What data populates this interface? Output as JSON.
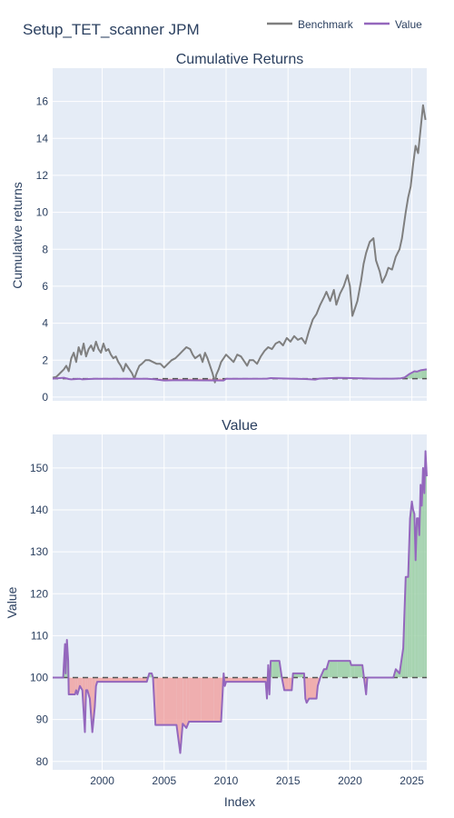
{
  "title": "Setup_TET_scanner JPM",
  "legend": [
    {
      "name": "Benchmark",
      "color": "#7f7f7f"
    },
    {
      "name": "Value",
      "color": "#9467bd"
    }
  ],
  "colors": {
    "plot_bg": "#e5ecf6",
    "grid": "#ffffff",
    "benchmark": "#7f7f7f",
    "value": "#9467bd",
    "fill_above": "#9fd0a8",
    "fill_below": "#efa7a7",
    "baseline": "#555555",
    "text": "#2a3f5f"
  },
  "chart_data": [
    {
      "type": "line",
      "title": "Cumulative Returns",
      "ylabel": "Cumulative returns",
      "xlim": [
        1996.0,
        2026.2
      ],
      "ylim": [
        -0.2,
        17.8
      ],
      "yticks": [
        0,
        2,
        4,
        6,
        8,
        10,
        12,
        14,
        16
      ],
      "baseline": 1,
      "grid": true,
      "series": [
        {
          "name": "Benchmark",
          "x": [
            1996.0,
            1996.3,
            1996.6,
            1996.9,
            1997.1,
            1997.3,
            1997.5,
            1997.7,
            1997.9,
            1998.1,
            1998.3,
            1998.5,
            1998.7,
            1998.9,
            1999.1,
            1999.3,
            1999.5,
            1999.7,
            1999.9,
            2000.1,
            2000.3,
            2000.5,
            2000.7,
            2000.9,
            2001.1,
            2001.3,
            2001.5,
            2001.7,
            2001.9,
            2002.1,
            2002.4,
            2002.6,
            2002.8,
            2003.0,
            2003.2,
            2003.5,
            2003.8,
            2004.1,
            2004.4,
            2004.7,
            2005.0,
            2005.3,
            2005.6,
            2005.9,
            2006.2,
            2006.5,
            2006.8,
            2007.1,
            2007.3,
            2007.5,
            2007.7,
            2007.9,
            2008.1,
            2008.3,
            2008.5,
            2008.7,
            2008.9,
            2009.1,
            2009.2,
            2009.4,
            2009.6,
            2009.8,
            2010.0,
            2010.3,
            2010.6,
            2010.9,
            2011.2,
            2011.5,
            2011.7,
            2011.9,
            2012.2,
            2012.5,
            2012.8,
            2013.1,
            2013.4,
            2013.7,
            2014.0,
            2014.3,
            2014.6,
            2014.9,
            2015.2,
            2015.5,
            2015.8,
            2016.1,
            2016.4,
            2016.7,
            2017.0,
            2017.3,
            2017.6,
            2017.9,
            2018.1,
            2018.4,
            2018.7,
            2018.9,
            2019.2,
            2019.5,
            2019.8,
            2020.0,
            2020.2,
            2020.4,
            2020.6,
            2020.9,
            2021.1,
            2021.3,
            2021.6,
            2021.9,
            2022.1,
            2022.4,
            2022.6,
            2022.9,
            2023.1,
            2023.4,
            2023.7,
            2024.0,
            2024.2,
            2024.5,
            2024.7,
            2024.9,
            2025.1,
            2025.3,
            2025.5,
            2025.7,
            2025.9,
            2026.1
          ],
          "y": [
            1.05,
            1.1,
            1.3,
            1.5,
            1.7,
            1.4,
            2.1,
            2.4,
            1.9,
            2.7,
            2.3,
            2.9,
            2.2,
            2.6,
            2.8,
            2.5,
            3.0,
            2.6,
            2.4,
            2.9,
            2.5,
            2.6,
            2.3,
            2.1,
            2.2,
            1.9,
            1.7,
            1.4,
            1.8,
            1.6,
            1.3,
            1.0,
            1.4,
            1.7,
            1.8,
            2.0,
            2.0,
            1.9,
            1.8,
            1.8,
            1.6,
            1.8,
            2.0,
            2.1,
            2.3,
            2.5,
            2.7,
            2.6,
            2.3,
            2.1,
            2.2,
            2.3,
            1.9,
            2.4,
            2.1,
            1.7,
            1.3,
            0.8,
            1.2,
            1.5,
            1.9,
            2.1,
            2.3,
            2.1,
            1.9,
            2.3,
            2.2,
            1.9,
            1.7,
            2.0,
            2.0,
            1.8,
            2.2,
            2.5,
            2.7,
            2.6,
            2.9,
            3.0,
            2.8,
            3.2,
            3.0,
            3.3,
            3.1,
            3.2,
            2.9,
            3.6,
            4.2,
            4.5,
            5.0,
            5.4,
            5.7,
            5.2,
            5.8,
            5.0,
            5.6,
            6.0,
            6.6,
            6.0,
            4.4,
            4.8,
            5.2,
            6.3,
            7.2,
            7.8,
            8.4,
            8.6,
            7.4,
            6.8,
            6.2,
            6.6,
            7.0,
            6.9,
            7.6,
            8.0,
            8.6,
            10.0,
            10.8,
            11.4,
            12.6,
            13.6,
            13.2,
            14.5,
            15.8,
            15.0
          ]
        },
        {
          "name": "Value",
          "x": [
            1996.0,
            1996.9,
            1997.3,
            1997.5,
            1998.2,
            1998.4,
            1998.9,
            1999.4,
            2003.6,
            2004.2,
            2005.0,
            2006.0,
            2007.0,
            2009.8,
            2010.0,
            2013.3,
            2013.6,
            2014.2,
            2015.2,
            2016.4,
            2017.2,
            2017.5,
            2018.0,
            2019.0,
            2020.1,
            2021.0,
            2022.0,
            2023.5,
            2024.1,
            2024.4,
            2024.8,
            2025.2,
            2025.4,
            2025.7,
            2026.2
          ],
          "y": [
            1.0,
            1.05,
            0.98,
            0.96,
            0.99,
            0.96,
            0.98,
            0.99,
            0.99,
            0.97,
            0.9,
            0.92,
            0.91,
            0.9,
            0.99,
            1.0,
            1.03,
            1.02,
            1.0,
            0.98,
            0.95,
            1.0,
            1.02,
            1.04,
            1.03,
            1.02,
            1.0,
            1.0,
            1.02,
            1.06,
            1.25,
            1.4,
            1.38,
            1.45,
            1.5
          ]
        }
      ]
    },
    {
      "type": "area",
      "title": "Value",
      "xlabel": "Index",
      "ylabel": "Value",
      "xlim": [
        1996.0,
        2026.2
      ],
      "xticks": [
        2000,
        2005,
        2010,
        2015,
        2020,
        2025
      ],
      "ylim": [
        78,
        158
      ],
      "yticks": [
        80,
        90,
        100,
        110,
        120,
        130,
        140,
        150
      ],
      "baseline": 100,
      "grid": true,
      "series": [
        {
          "name": "Value",
          "x": [
            1996.0,
            1996.85,
            1996.9,
            1997.0,
            1997.05,
            1997.15,
            1997.25,
            1997.3,
            1997.8,
            1997.9,
            1998.0,
            1998.2,
            1998.4,
            1998.6,
            1998.7,
            1998.8,
            1999.0,
            1999.2,
            1999.4,
            1999.5,
            1999.6,
            2003.6,
            2003.7,
            2003.8,
            2004.0,
            2004.1,
            2004.3,
            2004.4,
            2005.0,
            2006.0,
            2006.3,
            2006.5,
            2006.8,
            2007.0,
            2008.0,
            2009.0,
            2009.6,
            2009.8,
            2009.9,
            2010.0,
            2012.0,
            2013.2,
            2013.3,
            2013.4,
            2013.5,
            2013.6,
            2013.8,
            2014.3,
            2014.5,
            2014.7,
            2015.0,
            2015.3,
            2015.4,
            2016.3,
            2016.4,
            2016.5,
            2016.7,
            2017.3,
            2017.4,
            2017.6,
            2017.9,
            2018.1,
            2018.3,
            2019.0,
            2020.0,
            2020.1,
            2020.4,
            2021.0,
            2021.3,
            2021.4,
            2021.7,
            2022.5,
            2023.5,
            2023.7,
            2024.0,
            2024.3,
            2024.5,
            2024.6,
            2024.7,
            2024.85,
            2025.0,
            2025.1,
            2025.2,
            2025.3,
            2025.4,
            2025.5,
            2025.6,
            2025.7,
            2025.8,
            2025.9,
            2026.0,
            2026.1,
            2026.2
          ],
          "y": [
            100,
            100,
            103,
            108,
            101,
            109,
            104,
            96,
            96,
            97,
            96,
            98,
            97,
            87,
            97,
            97,
            95,
            87,
            93,
            98,
            99,
            99,
            100,
            101,
            101,
            100,
            88.7,
            88.7,
            88.7,
            88.7,
            82,
            89,
            88,
            89.5,
            89.5,
            89.5,
            89.5,
            101,
            98,
            99,
            99,
            99,
            95,
            103,
            96,
            104,
            104,
            104,
            100,
            97,
            97,
            97,
            101,
            101,
            95,
            94,
            95,
            95,
            98,
            100,
            102,
            102,
            104,
            104,
            104,
            103,
            103,
            103,
            96,
            100,
            100,
            100,
            100,
            102,
            101,
            107,
            124,
            124,
            124,
            138,
            142,
            140,
            139,
            128,
            138,
            138,
            134,
            146,
            141,
            150,
            144,
            154,
            148
          ]
        }
      ]
    }
  ]
}
